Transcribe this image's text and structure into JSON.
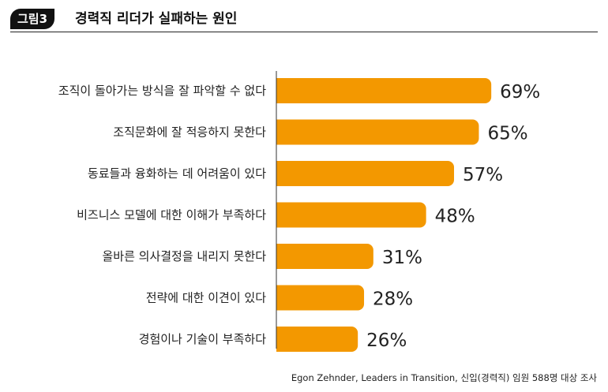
{
  "header": {
    "figure_tag": "그림3",
    "title": "경력직 리더가 실패하는 원인"
  },
  "chart_data": {
    "type": "bar",
    "orientation": "horizontal",
    "categories": [
      "조직이 돌아가는 방식을 잘 파악할 수 없다",
      "조직문화에 잘 적응하지 못한다",
      "동료들과 융화하는 데 어려움이 있다",
      "비즈니스 모델에 대한 이해가 부족하다",
      "올바른 의사결정을 내리지 못한다",
      "전략에 대한 이견이 있다",
      "경험이나 기술이 부족하다"
    ],
    "values": [
      69,
      65,
      57,
      48,
      31,
      28,
      26
    ],
    "value_labels": [
      "69%",
      "65%",
      "57%",
      "48%",
      "31%",
      "28%",
      "26%"
    ],
    "unit": "%",
    "xlim": [
      0,
      100
    ],
    "grid": false,
    "bar_color": "#F39800"
  },
  "source": "Egon Zehnder, Leaders in Transition, 신입(경력직) 임원 588명 대상 조사"
}
